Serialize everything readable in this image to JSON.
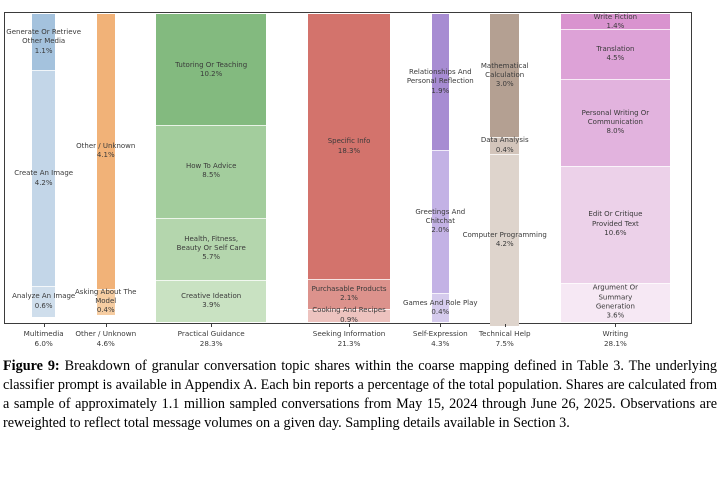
{
  "figure": {
    "caption_label": "Figure 9:",
    "caption_text": "Breakdown of granular conversation topic shares within the coarse mapping defined in Table 3. The underlying classifier prompt is available in Appendix A. Each bin reports a percentage of the total population. Shares are calculated from a sample of approximately 1.1 million sampled conversations from May 15, 2024 through June 26, 2025. Observations are reweighted to reflect total message volumes on a given day. Sampling details available in Section 3."
  },
  "chart_data": {
    "type": "bar",
    "variant": "marimekko-normalized-stacked",
    "title": "",
    "xlabel": "",
    "ylabel": "",
    "legend": "none",
    "grid": false,
    "frame_color": "#3b3b3b",
    "label_color": "#3a3a3a",
    "layout": {
      "inner_width": 686,
      "inner_height": 310,
      "left_margin": 27,
      "right_margin": 21,
      "gap": 41.5
    },
    "categories": [
      {
        "name": "Multimedia",
        "total": 6.0,
        "total_label": "6.0%",
        "segments": [
          {
            "name": "Generate Or Retrieve Other Media",
            "label": "Generate Or Retrieve\nOther Media\n1.1%",
            "pct": 1.1,
            "color": "#a4c2dd"
          },
          {
            "name": "Create An Image",
            "label": "Create An Image\n4.2%",
            "pct": 4.2,
            "color": "#c3d6e8"
          },
          {
            "name": "Analyze An Image",
            "label": "Analyze An Image\n0.6%",
            "pct": 0.6,
            "color": "#cfdeec"
          }
        ]
      },
      {
        "name": "Other / Unknown",
        "total": 4.6,
        "total_label": "4.6%",
        "segments": [
          {
            "name": "Other / Unknown",
            "label": "Other / Unknown\n4.1%",
            "pct": 4.1,
            "color": "#f1b278"
          },
          {
            "name": "Asking About The Model",
            "label": "Asking About The\nModel\n0.4%",
            "pct": 0.4,
            "color": "#f6cda2"
          }
        ]
      },
      {
        "name": "Practical Guidance",
        "total": 28.3,
        "total_label": "28.3%",
        "segments": [
          {
            "name": "Tutoring Or Teaching",
            "label": "Tutoring Or Teaching\n10.2%",
            "pct": 10.2,
            "color": "#83ba7f"
          },
          {
            "name": "How To Advice",
            "label": "How To Advice\n8.5%",
            "pct": 8.5,
            "color": "#a3cd9d"
          },
          {
            "name": "Health, Fitness, Beauty Or Self Care",
            "label": "Health, Fitness,\nBeauty Or Self Care\n5.7%",
            "pct": 5.7,
            "color": "#b4d6ad"
          },
          {
            "name": "Creative Ideation",
            "label": "Creative Ideation\n3.9%",
            "pct": 3.9,
            "color": "#c9e2c2"
          }
        ]
      },
      {
        "name": "Seeking Information",
        "total": 21.3,
        "total_label": "21.3%",
        "segments": [
          {
            "name": "Specific Info",
            "label": "Specific Info\n18.3%",
            "pct": 18.3,
            "color": "#d3736c"
          },
          {
            "name": "Purchasable Products",
            "label": "Purchasable Products\n2.1%",
            "pct": 2.1,
            "color": "#dc928c"
          },
          {
            "name": "Cooking And Recipes",
            "label": "Cooking And Recipes\n0.9%",
            "pct": 0.9,
            "color": "#edc3bf"
          }
        ]
      },
      {
        "name": "Self-Expression",
        "total": 4.3,
        "total_label": "4.3%",
        "segments": [
          {
            "name": "Relationships And Personal Reflection",
            "label": "Relationships And\nPersonal Reflection\n1.9%",
            "pct": 1.9,
            "color": "#a78cd2"
          },
          {
            "name": "Greetings And Chitchat",
            "label": "Greetings And\nChitchat\n2.0%",
            "pct": 2.0,
            "color": "#c3b2e5"
          },
          {
            "name": "Games And Role Play",
            "label": "Games And Role Play\n0.4%",
            "pct": 0.4,
            "color": "#d5cbed"
          }
        ]
      },
      {
        "name": "Technical Help",
        "total": 7.5,
        "total_label": "7.5%",
        "segments": [
          {
            "name": "Mathematical Calculation",
            "label": "Mathematical\nCalculation\n3.0%",
            "pct": 3.0,
            "color": "#b4a092"
          },
          {
            "name": "Data Analysis",
            "label": "Data Analysis\n0.4%",
            "pct": 0.4,
            "color": "#d3c5bb"
          },
          {
            "name": "Computer Programming",
            "label": "Computer Programming\n4.2%",
            "pct": 4.2,
            "color": "#ded4cc"
          }
        ]
      },
      {
        "name": "Writing",
        "total": 28.1,
        "total_label": "28.1%",
        "segments": [
          {
            "name": "Write Fiction",
            "label": "Write Fiction\n1.4%",
            "pct": 1.4,
            "color": "#d993cf"
          },
          {
            "name": "Translation",
            "label": "Translation\n4.5%",
            "pct": 4.5,
            "color": "#dda2d7"
          },
          {
            "name": "Personal Writing Or Communication",
            "label": "Personal Writing Or\nCommunication\n8.0%",
            "pct": 8.0,
            "color": "#e2b3de"
          },
          {
            "name": "Edit Or Critique Provided Text",
            "label": "Edit Or Critique\nProvided Text\n10.6%",
            "pct": 10.6,
            "color": "#ecd1e9"
          },
          {
            "name": "Argument Or Summary Generation",
            "label": "Argument Or Summary\nGeneration\n3.6%",
            "pct": 3.6,
            "color": "#f6e8f4"
          }
        ]
      }
    ]
  }
}
